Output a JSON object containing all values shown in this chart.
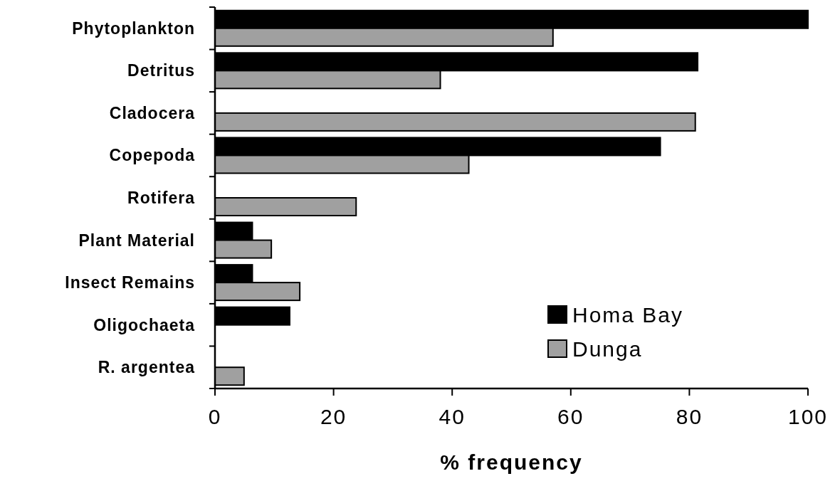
{
  "chart_data": {
    "type": "bar",
    "orientation": "horizontal",
    "xlabel": "% frequency",
    "categories": [
      "Phytoplankton",
      "Detritus",
      "Cladocera",
      "Copepoda",
      "Rotifera",
      "Plant Material",
      "Insect Remains",
      "Oligochaeta",
      "R. argentea"
    ],
    "series": [
      {
        "name": "Homa Bay",
        "color": "#000000",
        "values": [
          100,
          81.4,
          null,
          75.1,
          null,
          6.3,
          6.3,
          12.6,
          null
        ]
      },
      {
        "name": "Dunga",
        "color": "#a0a0a0",
        "values": [
          57,
          38,
          81,
          42.8,
          23.8,
          9.5,
          14.3,
          null,
          4.9
        ]
      }
    ],
    "xlim": [
      0,
      100
    ],
    "xticks": [
      0,
      20,
      40,
      60,
      80,
      100
    ],
    "grid": false,
    "legend": "bottom right"
  }
}
